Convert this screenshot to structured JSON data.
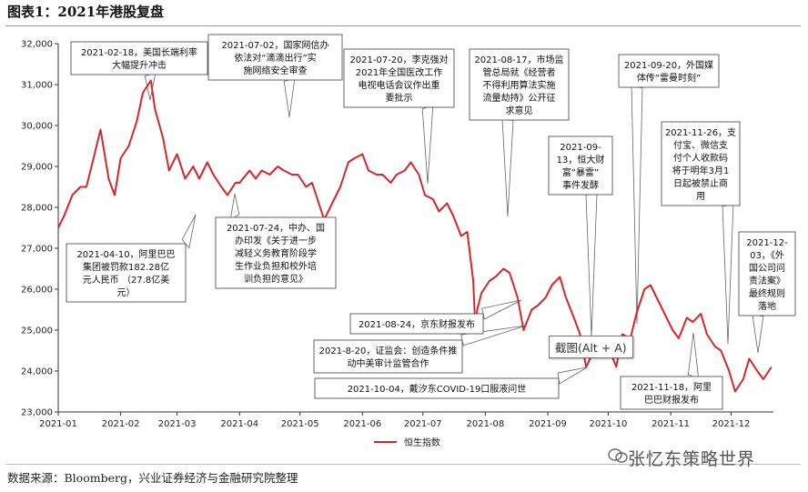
{
  "header": {
    "title": "图表1：2021年港股复盘"
  },
  "footer": {
    "source": "数据来源：Bloomberg，兴业证券经济与金融研究院整理",
    "watermark": "张忆东策略世界"
  },
  "overlay": {
    "screenshot_tip": "截图(Alt + A)"
  },
  "colors": {
    "line": "#d62728",
    "accent": "#c00000"
  },
  "chart_data": {
    "type": "line",
    "title": "",
    "xlabel": "",
    "ylabel": "",
    "ylim": [
      23000,
      32000
    ],
    "yticks": [
      23000,
      24000,
      25000,
      26000,
      27000,
      28000,
      29000,
      30000,
      31000,
      32000
    ],
    "ytick_labels": [
      "23,000",
      "24,000",
      "25,000",
      "26,000",
      "27,000",
      "28,000",
      "29,000",
      "30,000",
      "31,000",
      "32,000"
    ],
    "x_range": [
      "2021-01-01",
      "2021-12-22"
    ],
    "xtick_labels": [
      "2021-01",
      "2021-02",
      "2021-03",
      "2021-04",
      "2021-05",
      "2021-06",
      "2021-07",
      "2021-08",
      "2021-09",
      "2021-10",
      "2021-11",
      "2021-12"
    ],
    "xtick_dates": [
      "2021-01-01",
      "2021-02-01",
      "2021-03-01",
      "2021-04-01",
      "2021-05-01",
      "2021-06-01",
      "2021-07-01",
      "2021-08-01",
      "2021-09-01",
      "2021-10-01",
      "2021-11-01",
      "2021-12-01"
    ],
    "grid": false,
    "legend": "bottom-center",
    "series": [
      {
        "name": "恒生指数",
        "x": [
          "2021-01-01",
          "2021-01-04",
          "2021-01-08",
          "2021-01-12",
          "2021-01-15",
          "2021-01-19",
          "2021-01-22",
          "2021-01-26",
          "2021-01-29",
          "2021-02-01",
          "2021-02-05",
          "2021-02-09",
          "2021-02-12",
          "2021-02-16",
          "2021-02-18",
          "2021-02-22",
          "2021-02-25",
          "2021-03-01",
          "2021-03-05",
          "2021-03-09",
          "2021-03-12",
          "2021-03-16",
          "2021-03-19",
          "2021-03-23",
          "2021-03-26",
          "2021-03-30",
          "2021-04-01",
          "2021-04-06",
          "2021-04-09",
          "2021-04-12",
          "2021-04-16",
          "2021-04-20",
          "2021-04-23",
          "2021-04-27",
          "2021-04-30",
          "2021-05-04",
          "2021-05-07",
          "2021-05-11",
          "2021-05-13",
          "2021-05-17",
          "2021-05-21",
          "2021-05-25",
          "2021-05-28",
          "2021-06-01",
          "2021-06-04",
          "2021-06-08",
          "2021-06-11",
          "2021-06-15",
          "2021-06-18",
          "2021-06-22",
          "2021-06-25",
          "2021-06-29",
          "2021-07-02",
          "2021-07-06",
          "2021-07-09",
          "2021-07-13",
          "2021-07-16",
          "2021-07-20",
          "2021-07-23",
          "2021-07-26",
          "2021-07-27",
          "2021-07-28",
          "2021-07-30",
          "2021-08-03",
          "2021-08-06",
          "2021-08-10",
          "2021-08-13",
          "2021-08-17",
          "2021-08-20",
          "2021-08-24",
          "2021-08-27",
          "2021-08-31",
          "2021-09-03",
          "2021-09-07",
          "2021-09-10",
          "2021-09-14",
          "2021-09-17",
          "2021-09-20",
          "2021-09-24",
          "2021-09-28",
          "2021-10-01",
          "2021-10-05",
          "2021-10-08",
          "2021-10-12",
          "2021-10-15",
          "2021-10-19",
          "2021-10-22",
          "2021-10-26",
          "2021-10-29",
          "2021-11-02",
          "2021-11-05",
          "2021-11-09",
          "2021-11-12",
          "2021-11-16",
          "2021-11-19",
          "2021-11-23",
          "2021-11-26",
          "2021-11-30",
          "2021-12-03",
          "2021-12-07",
          "2021-12-10",
          "2021-12-14",
          "2021-12-17",
          "2021-12-21"
        ],
        "values": [
          27500,
          27800,
          28300,
          28500,
          28500,
          29300,
          29900,
          28700,
          28300,
          29200,
          29500,
          30100,
          30800,
          31100,
          30400,
          29700,
          28900,
          29300,
          28700,
          29000,
          28700,
          29100,
          28800,
          28500,
          28300,
          28600,
          28600,
          28900,
          28700,
          28900,
          28800,
          29000,
          28900,
          28800,
          28800,
          28500,
          28600,
          28000,
          27700,
          28100,
          28500,
          29100,
          29200,
          29300,
          28900,
          28800,
          28800,
          28600,
          28800,
          28900,
          29100,
          28800,
          28300,
          28200,
          27900,
          28100,
          27800,
          27300,
          27400,
          26200,
          25100,
          25500,
          25900,
          26200,
          26300,
          26500,
          26400,
          25800,
          25000,
          25500,
          25600,
          25800,
          26100,
          26300,
          25800,
          25300,
          24900,
          24100,
          24500,
          24400,
          24600,
          24100,
          24900,
          24800,
          25400,
          26000,
          26100,
          25700,
          25400,
          25000,
          24800,
          25300,
          25200,
          25400,
          24900,
          24600,
          24500,
          24000,
          23500,
          23800,
          24300,
          24000,
          23800,
          24100
        ]
      }
    ],
    "annotations": [
      {
        "lines": [
          "2021-02-18，美国长端利率",
          "大幅提升冲击"
        ]
      },
      {
        "lines": [
          "2021-07-02，国家网信办",
          "依法对“滴滴出行”实",
          "施网络安全审查"
        ]
      },
      {
        "lines": [
          "2021-07-20，李克强对",
          "2021年全国医改工作",
          "电视电话会议作出重",
          "要批示"
        ]
      },
      {
        "lines": [
          "2021-08-17，市场监",
          "管总局就《经营者",
          "不得利用算法实施",
          "流量劫持》公开征",
          "求意见"
        ]
      },
      {
        "lines": [
          "2021-09-20，外国媒",
          "体传“雷曼时刻”"
        ]
      },
      {
        "lines": [
          "2021-09-",
          "13，恒大财",
          "富“暴雷”",
          "事件发酵"
        ]
      },
      {
        "lines": [
          "2021-11-26，支",
          "付宝、微信支",
          "付个人收款码",
          "将于明年3月1",
          "日起被禁止商",
          "用"
        ]
      },
      {
        "lines": [
          "2021-07-24，中办、国",
          "办印发《关于进一步",
          "减轻义务教育阶段学",
          "生作业负担和校外培",
          "训负担的意见》"
        ]
      },
      {
        "lines": [
          "2021-04-10，阿里巴巴",
          "集团被罚款182.28亿",
          "元人民币 （27.8亿美",
          "元）"
        ]
      },
      {
        "lines": [
          "2021-12-",
          "03，《外",
          "国公司问",
          "责法案》",
          "最终规则",
          "落地"
        ]
      },
      {
        "lines": [
          "2021-08-24，京东财报发布"
        ]
      },
      {
        "lines": [
          "2021-8-20，证监会：创造条件推",
          "动中美审计监管合作"
        ]
      },
      {
        "lines": [
          "2021-10-04，戴汐东COVID-19口服液问世"
        ]
      },
      {
        "lines": [
          "2021-11-18，阿里",
          "巴巴财报发布"
        ]
      }
    ]
  }
}
